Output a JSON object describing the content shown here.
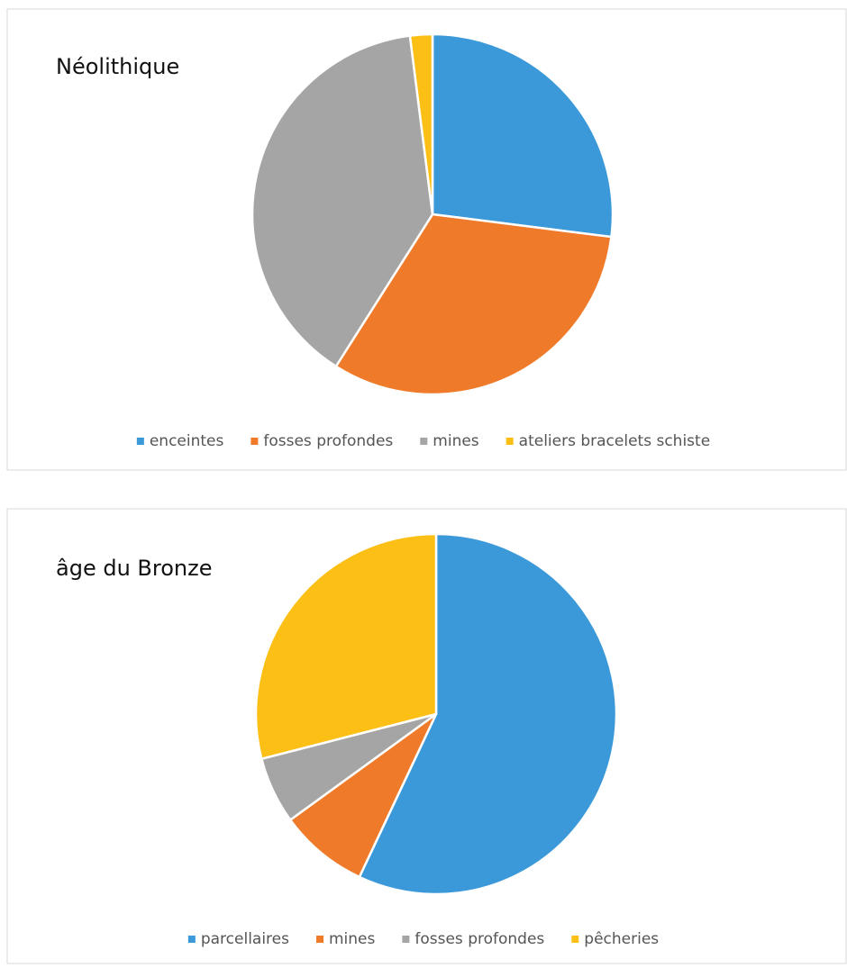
{
  "chart_data": [
    {
      "type": "pie",
      "title": "Néolithique",
      "categories": [
        "enceintes",
        "fosses profondes",
        "mines",
        "ateliers bracelets schiste"
      ],
      "values": [
        27,
        32,
        39,
        2
      ],
      "colors": [
        "#3b99d9",
        "#ef7b2a",
        "#a5a5a5",
        "#fbbf16"
      ],
      "legend": "bottom"
    },
    {
      "type": "pie",
      "title": "âge du Bronze",
      "categories": [
        "parcellaires",
        "mines",
        "fosses profondes",
        "pêcheries"
      ],
      "values": [
        57,
        8,
        6,
        29
      ],
      "colors": [
        "#3b99d9",
        "#ef7b2a",
        "#a5a5a5",
        "#fbbf16"
      ],
      "legend": "bottom"
    }
  ]
}
